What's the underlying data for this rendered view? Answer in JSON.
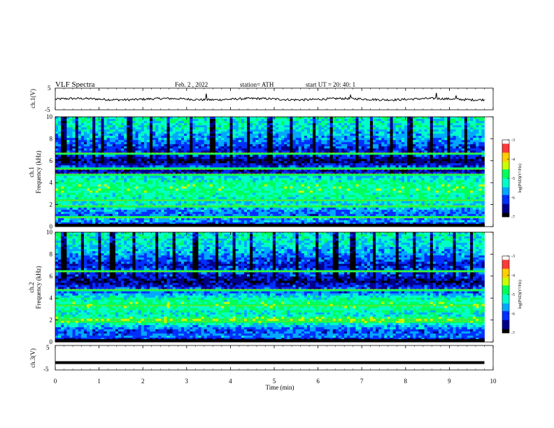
{
  "header": {
    "title": "VLF  Spectra",
    "date": "Feb. 2  , 2022",
    "station": "station= ATH",
    "start": "start  UT  =    20: 40: 1"
  },
  "axes": {
    "xlabel": "Time  (min)",
    "ch1_label": "ch.1(V)",
    "ch3_label": "ch.3(V)",
    "spec1_label": [
      "ch.1",
      "Frequency  (kHz)"
    ],
    "spec2_label": [
      "ch.2",
      "Frequency  (kHz)"
    ],
    "colorbar_label": "log(PSD)(V²/Hz)"
  },
  "colors": {
    "colormap": [
      "#ffffff",
      "#ff3a3a",
      "#ffcf00",
      "#c8ff00",
      "#00ff5a",
      "#00ffc8",
      "#00a8ff",
      "#0030ff",
      "#00008c",
      "#000000"
    ]
  },
  "chart_data": [
    {
      "type": "line",
      "name": "ch1-waveform",
      "ylabel": "ch.1(V)",
      "xlim": [
        0,
        10
      ],
      "ylim": [
        -5,
        5
      ],
      "yticks": [
        "5",
        "-5"
      ],
      "data_xrange": [
        0,
        9.8
      ],
      "baseline": -0.1,
      "noise_amplitude": 0.5,
      "spikes": [
        {
          "x": 3.45,
          "y": 2.5
        },
        {
          "x": 6.75,
          "y": 1.8
        },
        {
          "x": 8.7,
          "y": 2.8
        },
        {
          "x": 9.15,
          "y": 1.6
        }
      ]
    },
    {
      "type": "heatmap",
      "name": "ch1-spectrogram",
      "ylabel": "Frequency  (kHz)",
      "xlabel": "Time  (min)",
      "xlim": [
        0,
        10
      ],
      "ylim": [
        0,
        10
      ],
      "yticks": [
        "0",
        "2",
        "4",
        "6",
        "8",
        "10"
      ],
      "data_xrange": [
        0,
        9.8
      ],
      "color_scale": "log(PSD)",
      "clim": [
        -7,
        -3
      ],
      "colorbar_ticks": [
        "-3",
        "-4",
        "-5",
        "-6",
        "-7"
      ],
      "frequency_profile_kHz": [
        {
          "f": 0.0,
          "v": -6.9
        },
        {
          "f": 0.5,
          "v": -5.6
        },
        {
          "f": 1.0,
          "v": -6.0
        },
        {
          "f": 1.5,
          "v": -5.7
        },
        {
          "f": 2.0,
          "v": -5.3
        },
        {
          "f": 2.5,
          "v": -5.2
        },
        {
          "f": 3.0,
          "v": -5.0
        },
        {
          "f": 3.5,
          "v": -4.9
        },
        {
          "f": 4.0,
          "v": -5.0
        },
        {
          "f": 4.5,
          "v": -5.4
        },
        {
          "f": 5.0,
          "v": -6.6
        },
        {
          "f": 5.5,
          "v": -6.1
        },
        {
          "f": 6.0,
          "v": -6.8
        },
        {
          "f": 6.5,
          "v": -6.0
        },
        {
          "f": 7.0,
          "v": -6.3
        },
        {
          "f": 8.0,
          "v": -5.7
        },
        {
          "f": 9.0,
          "v": -5.3
        },
        {
          "f": 10.0,
          "v": -5.1
        }
      ],
      "narrowband_lines_kHz": [
        0.8,
        1.9,
        2.4,
        4.8,
        5.2,
        6.7
      ],
      "dark_vertical_streaks_min": [
        0.2,
        0.5,
        0.9,
        1.1,
        1.7,
        2.2,
        2.6,
        3.1,
        3.6,
        4.0,
        4.4,
        4.9,
        5.4,
        5.9,
        6.3,
        6.9,
        7.2,
        7.7,
        8.1,
        8.6,
        9.0,
        9.4
      ]
    },
    {
      "type": "heatmap",
      "name": "ch2-spectrogram",
      "ylabel": "Frequency  (kHz)",
      "xlabel": "Time  (min)",
      "xlim": [
        0,
        10
      ],
      "ylim": [
        0,
        10
      ],
      "yticks": [
        "0",
        "2",
        "4",
        "6",
        "8",
        "10"
      ],
      "data_xrange": [
        0,
        9.8
      ],
      "color_scale": "log(PSD)",
      "clim": [
        -7,
        -3
      ],
      "colorbar_ticks": [
        "-3",
        "-4",
        "-5",
        "-6",
        "-7"
      ],
      "frequency_profile_kHz": [
        {
          "f": 0.0,
          "v": -6.9
        },
        {
          "f": 0.5,
          "v": -5.8
        },
        {
          "f": 1.0,
          "v": -6.1
        },
        {
          "f": 1.5,
          "v": -5.5
        },
        {
          "f": 2.0,
          "v": -4.6
        },
        {
          "f": 2.5,
          "v": -5.3
        },
        {
          "f": 3.0,
          "v": -5.0
        },
        {
          "f": 3.5,
          "v": -4.9
        },
        {
          "f": 4.0,
          "v": -5.1
        },
        {
          "f": 4.5,
          "v": -5.9
        },
        {
          "f": 5.0,
          "v": -6.2
        },
        {
          "f": 5.5,
          "v": -6.7
        },
        {
          "f": 6.0,
          "v": -6.2
        },
        {
          "f": 6.5,
          "v": -6.0
        },
        {
          "f": 7.0,
          "v": -6.3
        },
        {
          "f": 8.0,
          "v": -5.7
        },
        {
          "f": 9.0,
          "v": -5.3
        },
        {
          "f": 10.0,
          "v": -5.1
        }
      ],
      "narrowband_lines_kHz": [
        1.9,
        2.1,
        3.3,
        4.8,
        6.4
      ],
      "dark_vertical_streaks_min": [
        0.2,
        0.6,
        1.0,
        1.3,
        1.8,
        2.3,
        2.7,
        3.2,
        3.7,
        4.1,
        4.5,
        5.0,
        5.5,
        6.0,
        6.4,
        6.8,
        7.3,
        7.8,
        8.2,
        8.6,
        9.1,
        9.5
      ]
    },
    {
      "type": "line",
      "name": "ch3-waveform",
      "ylabel": "ch.3(V)",
      "xlim": [
        0,
        10
      ],
      "ylim": [
        -5,
        5
      ],
      "yticks": [
        "5",
        "-5"
      ],
      "data_xrange": [
        0,
        9.8
      ],
      "baseline": -2.0,
      "noise_amplitude": 0.0
    }
  ],
  "xaxis": {
    "ticks": [
      "0",
      "1",
      "2",
      "3",
      "4",
      "5",
      "6",
      "7",
      "8",
      "9",
      "10"
    ]
  }
}
